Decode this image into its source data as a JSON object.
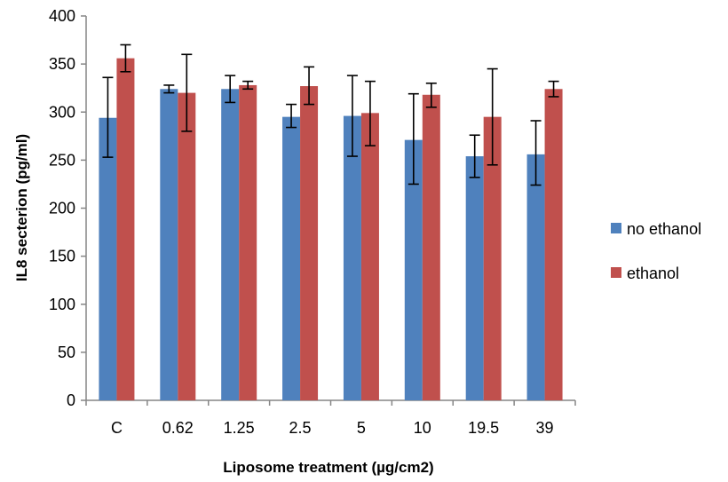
{
  "chart_data": {
    "type": "bar",
    "title": "",
    "xlabel": "Liposome treatment (µg/cm2)",
    "ylabel": "IL8 secterion (pg/ml)",
    "ylim": [
      0,
      400
    ],
    "yticks": [
      0,
      50,
      100,
      150,
      200,
      250,
      300,
      350,
      400
    ],
    "grid": false,
    "legend_position": "right",
    "categories": [
      "C",
      "0.62",
      "1.25",
      "2.5",
      "5",
      "10",
      "19.5",
      "39"
    ],
    "series": [
      {
        "name": "no ethanol",
        "color": "#4f81bd",
        "values": [
          294,
          324,
          324,
          295,
          296,
          271,
          254,
          256
        ],
        "error_low": [
          253,
          320,
          310,
          284,
          254,
          225,
          232,
          224
        ],
        "error_high": [
          336,
          328,
          338,
          308,
          338,
          319,
          276,
          291
        ]
      },
      {
        "name": "ethanol",
        "color": "#c0504d",
        "values": [
          356,
          320,
          328,
          327,
          299,
          318,
          295,
          324
        ],
        "error_low": [
          342,
          280,
          324,
          308,
          265,
          305,
          245,
          316
        ],
        "error_high": [
          370,
          360,
          332,
          347,
          332,
          330,
          345,
          332
        ]
      }
    ]
  }
}
